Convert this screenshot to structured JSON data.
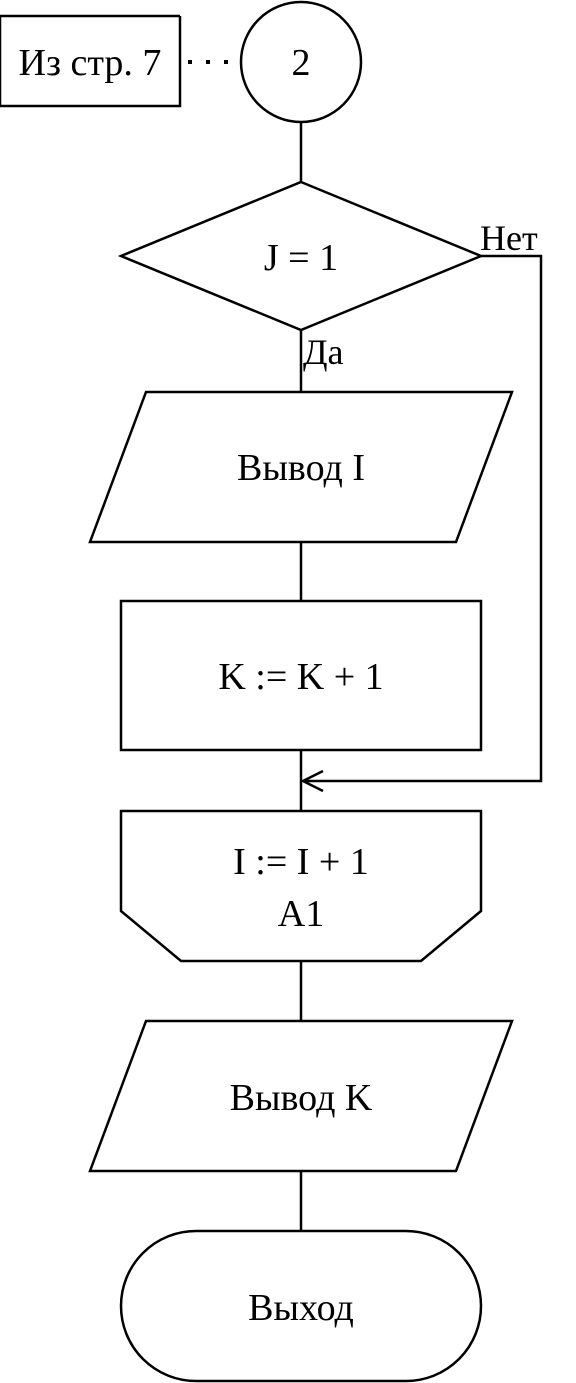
{
  "comment_box": {
    "text": "Из стр. 7"
  },
  "connector": {
    "text": "2"
  },
  "decision": {
    "text": "J = 1",
    "yes_label": "Да",
    "no_label": "Нет"
  },
  "output_i": {
    "text": "Вывод I"
  },
  "process_k": {
    "text": "K := K + 1"
  },
  "loop_end": {
    "line1": "I := I + 1",
    "line2": "A1"
  },
  "output_k": {
    "text": "Вывод K"
  },
  "terminator": {
    "text": "Выход"
  }
}
